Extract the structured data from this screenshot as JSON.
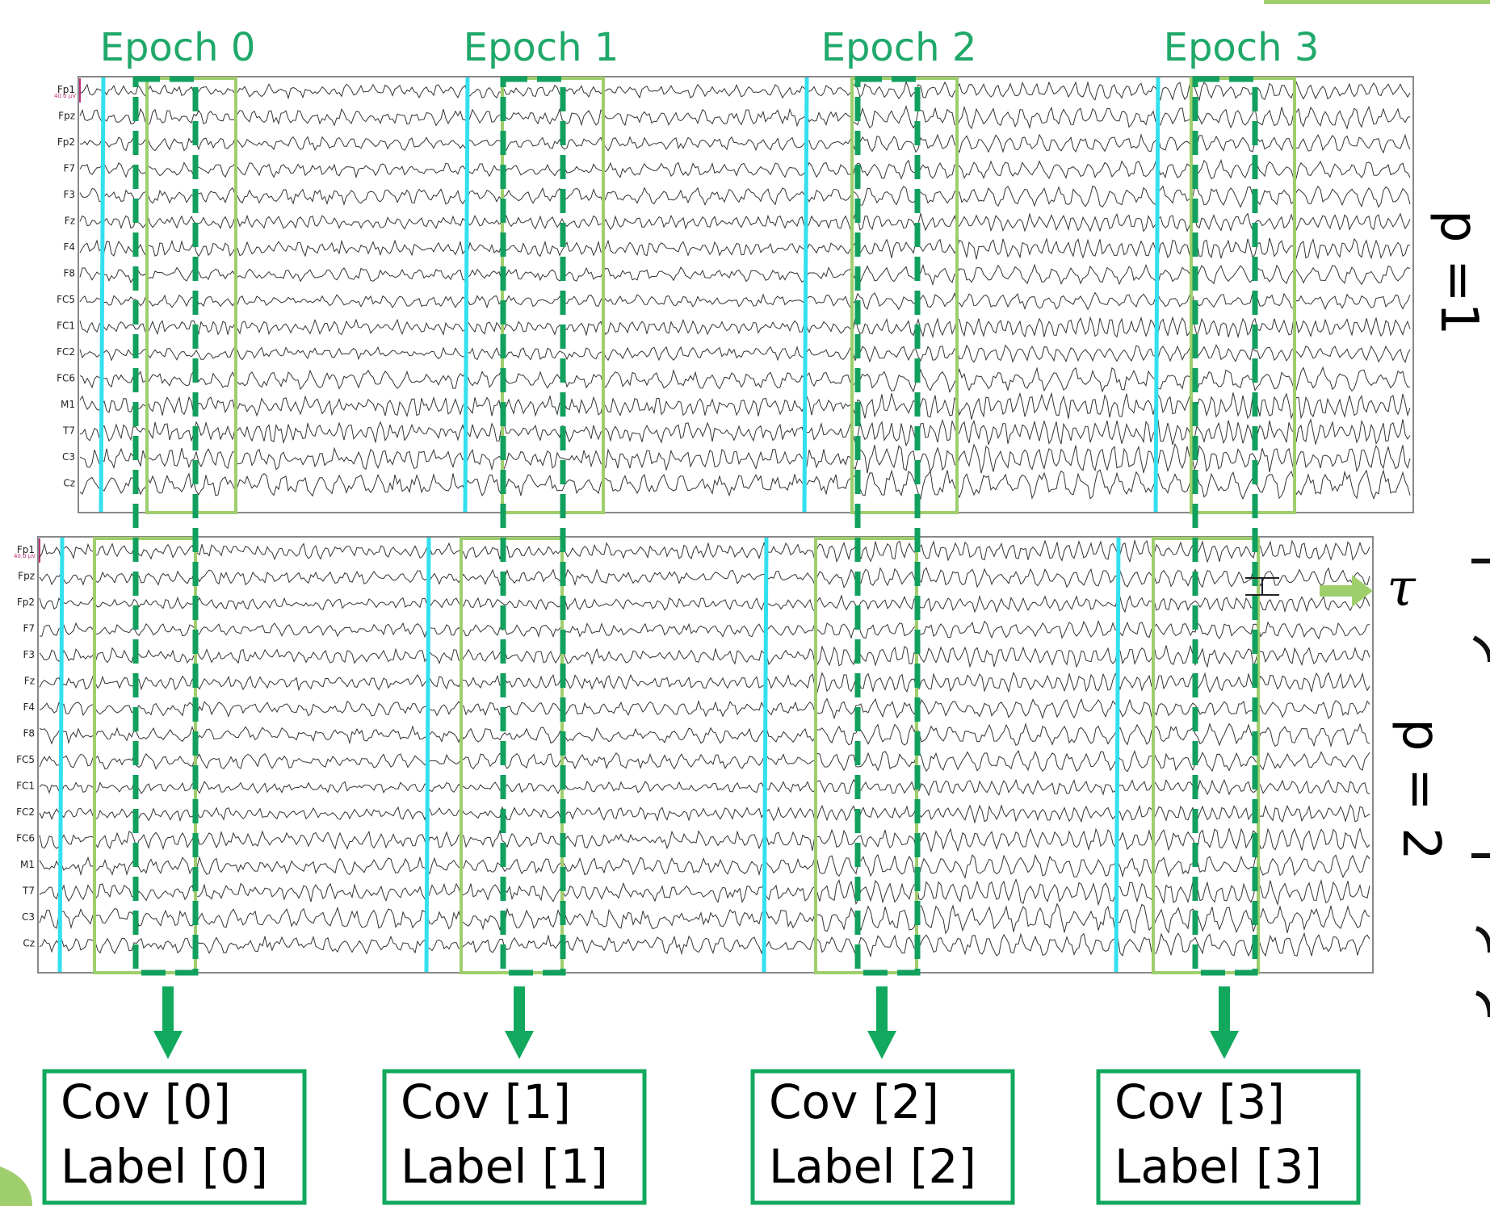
{
  "epochs": [
    {
      "title": "Epoch 0",
      "cov": "Cov [0]",
      "label": "Label [0]"
    },
    {
      "title": "Epoch 1",
      "cov": "Cov [1]",
      "label": "Label [1]"
    },
    {
      "title": "Epoch 2",
      "cov": "Cov [2]",
      "label": "Label [2]"
    },
    {
      "title": "Epoch 3",
      "cov": "Cov [3]",
      "label": "Label [3]"
    }
  ],
  "panels": [
    {
      "p_label": "p =1",
      "scale_text": "40.0 µV"
    },
    {
      "p_label": "p = 2",
      "scale_text": "40.0 µV"
    }
  ],
  "channels": [
    "Fp1",
    "Fpz",
    "Fp2",
    "F7",
    "F3",
    "Fz",
    "F4",
    "F8",
    "FC5",
    "FC1",
    "FC2",
    "FC6",
    "M1",
    "T7",
    "C3",
    "Cz"
  ],
  "tau_symbol": "τ",
  "colors": {
    "epoch_text": "#1fa86a",
    "dashed_box": "#12a05e",
    "light_box": "#9fce6d",
    "marker": "#33e0ee",
    "arrow": "#12a85e",
    "cov_box": "#12a85e",
    "trace": "#333333",
    "scale": "#c0307a",
    "tau_arrow": "#9fce6d"
  }
}
